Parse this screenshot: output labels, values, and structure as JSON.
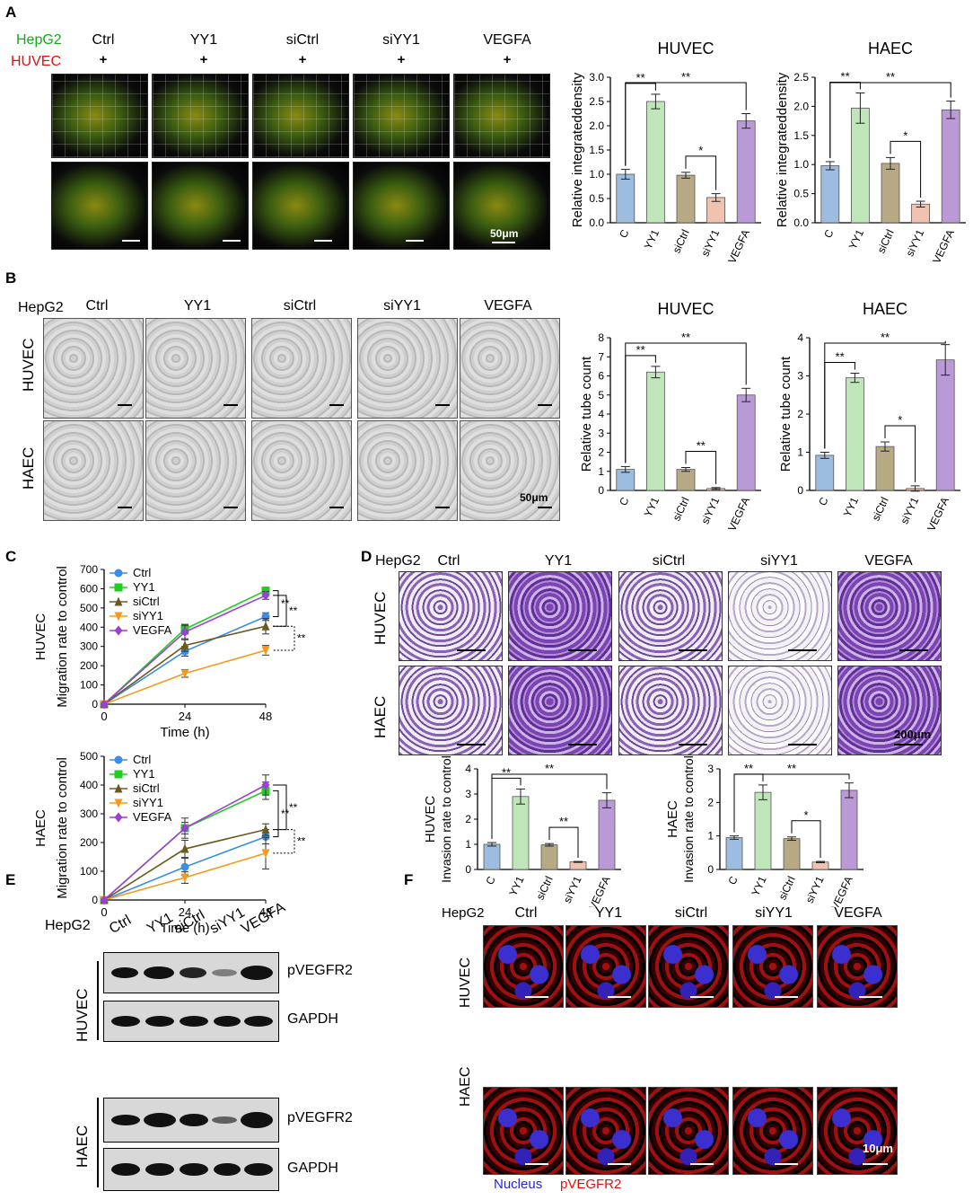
{
  "panels": {
    "A": "A",
    "B": "B",
    "C": "C",
    "D": "D",
    "E": "E",
    "F": "F"
  },
  "panel_a": {
    "row_labels": [
      "HepG2",
      "HUVEC"
    ],
    "row_colors": [
      "#1aa51a",
      "#e01010"
    ],
    "groups": [
      "Ctrl",
      "YY1",
      "siCtrl",
      "siYY1",
      "VEGFA"
    ],
    "plus": "+",
    "scale": "50μm"
  },
  "panel_b": {
    "label": "HepG2",
    "groups": [
      "Ctrl",
      "YY1",
      "siCtrl",
      "siYY1",
      "VEGFA"
    ],
    "rows": [
      "HUVEC",
      "HAEC"
    ],
    "scale": "50μm"
  },
  "panel_d": {
    "label": "HepG2",
    "groups": [
      "Ctrl",
      "YY1",
      "siCtrl",
      "siYY1",
      "VEGFA"
    ],
    "rows": [
      "HUVEC",
      "HAEC"
    ],
    "scale": "200μm"
  },
  "panel_e": {
    "label": "HepG2",
    "groups": [
      "Ctrl",
      "YY1",
      "siCtrl",
      "siYY1",
      "VEGFA"
    ],
    "cell_lines": [
      "HUVEC",
      "HAEC"
    ],
    "bands": [
      "pVEGFR2",
      "GAPDH",
      "pVEGFR2",
      "GAPDH"
    ],
    "band_intensity_huvec_p": [
      0.75,
      0.85,
      0.7,
      0.3,
      0.95
    ],
    "band_intensity_haec_p": [
      0.75,
      0.95,
      0.8,
      0.4,
      1.0
    ]
  },
  "panel_f": {
    "label": "HepG2",
    "groups": [
      "Ctrl",
      "YY1",
      "siCtrl",
      "siYY1",
      "VEGFA"
    ],
    "rows": [
      "HUVEC",
      "HAEC"
    ],
    "scale": "10μm",
    "legend_nucleus": "Nucleus",
    "legend_marker": "pVEGFR2",
    "legend_colors": [
      "#2424e0",
      "#e01010"
    ]
  },
  "chart_data": [
    {
      "id": "A-HUVEC",
      "type": "bar",
      "title": "HUVEC",
      "ylabel": "Relative integrateddensity",
      "categories": [
        "C",
        "YY1",
        "siCtrl",
        "siYY1",
        "VEGFA"
      ],
      "values": [
        1.0,
        2.5,
        0.98,
        0.52,
        2.1
      ],
      "errors": [
        0.1,
        0.15,
        0.06,
        0.08,
        0.15
      ],
      "colors": [
        "#9cbce0",
        "#bfe6b8",
        "#b8a985",
        "#efc3b0",
        "#b99ad6"
      ],
      "ylim": [
        0,
        3.0
      ],
      "yticks": [
        "0.0",
        "0.5",
        "1.0",
        "1.5",
        "2.0",
        "2.5",
        "3.0"
      ],
      "sig": [
        {
          "from": 0,
          "to": 1,
          "text": "**"
        },
        {
          "from": 0,
          "to": 4,
          "text": "**"
        },
        {
          "from": 2,
          "to": 3,
          "text": "*"
        }
      ]
    },
    {
      "id": "A-HAEC",
      "type": "bar",
      "title": "HAEC",
      "ylabel": "Relative integrateddensity",
      "categories": [
        "C",
        "YY1",
        "siCtrl",
        "siYY1",
        "VEGFA"
      ],
      "values": [
        0.98,
        1.97,
        1.02,
        0.32,
        1.94
      ],
      "errors": [
        0.07,
        0.26,
        0.1,
        0.05,
        0.15
      ],
      "colors": [
        "#9cbce0",
        "#bfe6b8",
        "#b8a985",
        "#efc3b0",
        "#b99ad6"
      ],
      "ylim": [
        0,
        2.5
      ],
      "yticks": [
        "0.0",
        "0.5",
        "1.0",
        "1.5",
        "2.0",
        "2.5"
      ],
      "sig": [
        {
          "from": 0,
          "to": 1,
          "text": "**"
        },
        {
          "from": 0,
          "to": 4,
          "text": "**"
        },
        {
          "from": 2,
          "to": 3,
          "text": "*"
        }
      ]
    },
    {
      "id": "B-HUVEC",
      "type": "bar",
      "title": "HUVEC",
      "ylabel": "Relative tube count",
      "categories": [
        "C",
        "YY1",
        "siCtrl",
        "siYY1",
        "VEGFA"
      ],
      "values": [
        1.1,
        6.2,
        1.1,
        0.1,
        5.0
      ],
      "errors": [
        0.15,
        0.3,
        0.1,
        0.05,
        0.35
      ],
      "colors": [
        "#9cbce0",
        "#bfe6b8",
        "#b8a985",
        "#efc3b0",
        "#b99ad6"
      ],
      "ylim": [
        0,
        8
      ],
      "yticks": [
        "0",
        "1",
        "2",
        "3",
        "4",
        "5",
        "6",
        "7",
        "8"
      ],
      "sig": [
        {
          "from": 0,
          "to": 1,
          "text": "**"
        },
        {
          "from": 0,
          "to": 4,
          "text": "**"
        },
        {
          "from": 2,
          "to": 3,
          "text": "**"
        }
      ]
    },
    {
      "id": "B-HAEC",
      "type": "bar",
      "title": "HAEC",
      "ylabel": "Relative tube count",
      "categories": [
        "C",
        "YY1",
        "siCtrl",
        "siYY1",
        "VEGFA"
      ],
      "values": [
        0.92,
        2.95,
        1.15,
        0.05,
        3.42
      ],
      "errors": [
        0.08,
        0.12,
        0.12,
        0.07,
        0.4
      ],
      "colors": [
        "#9cbce0",
        "#bfe6b8",
        "#b8a985",
        "#efc3b0",
        "#b99ad6"
      ],
      "ylim": [
        0,
        4
      ],
      "yticks": [
        "0",
        "1",
        "2",
        "3",
        "4"
      ],
      "sig": [
        {
          "from": 0,
          "to": 1,
          "text": "**"
        },
        {
          "from": 0,
          "to": 4,
          "text": "**"
        },
        {
          "from": 2,
          "to": 3,
          "text": "*"
        }
      ]
    },
    {
      "id": "C-HUVEC",
      "type": "line",
      "rowlabel": "HUVEC",
      "xlabel": "Time (h)",
      "ylabel": "Migration rate to control",
      "x": [
        0,
        24,
        48
      ],
      "xticks": [
        "0",
        "24",
        "48"
      ],
      "ylim": [
        0,
        700
      ],
      "yticks": [
        "0",
        "100",
        "200",
        "300",
        "400",
        "500",
        "600",
        "700"
      ],
      "series": [
        {
          "name": "Ctrl",
          "color": "#3a8ee6",
          "marker": "circle",
          "values": [
            0,
            275,
            455
          ],
          "errors": [
            0,
            25,
            20
          ]
        },
        {
          "name": "YY1",
          "color": "#22cc22",
          "marker": "square",
          "values": [
            0,
            390,
            590
          ],
          "errors": [
            0,
            25,
            15
          ]
        },
        {
          "name": "siCtrl",
          "color": "#6b5a1e",
          "marker": "triangle",
          "values": [
            0,
            305,
            405
          ],
          "errors": [
            0,
            30,
            40
          ]
        },
        {
          "name": "siYY1",
          "color": "#f59a1e",
          "marker": "triangle-down",
          "values": [
            0,
            160,
            280
          ],
          "errors": [
            0,
            20,
            25
          ]
        },
        {
          "name": "VEGFA",
          "color": "#9b3fd6",
          "marker": "diamond",
          "values": [
            0,
            375,
            565
          ],
          "errors": [
            0,
            35,
            20
          ]
        }
      ],
      "sig": [
        "**",
        "**",
        "**"
      ]
    },
    {
      "id": "C-HAEC",
      "type": "line",
      "rowlabel": "HAEC",
      "xlabel": "Time (h)",
      "ylabel": "Migration rate to control",
      "x": [
        0,
        24,
        48
      ],
      "xticks": [
        "0",
        "24",
        "48"
      ],
      "ylim": [
        0,
        500
      ],
      "yticks": [
        "0",
        "100",
        "200",
        "300",
        "400",
        "500"
      ],
      "series": [
        {
          "name": "Ctrl",
          "color": "#3a8ee6",
          "marker": "circle",
          "values": [
            0,
            115,
            220
          ],
          "errors": [
            0,
            30,
            25
          ]
        },
        {
          "name": "YY1",
          "color": "#22cc22",
          "marker": "square",
          "values": [
            0,
            250,
            380
          ],
          "errors": [
            0,
            20,
            30
          ]
        },
        {
          "name": "siCtrl",
          "color": "#6b5a1e",
          "marker": "triangle",
          "values": [
            0,
            178,
            245
          ],
          "errors": [
            0,
            30,
            20
          ]
        },
        {
          "name": "siYY1",
          "color": "#f59a1e",
          "marker": "triangle-down",
          "values": [
            0,
            78,
            163
          ],
          "errors": [
            0,
            20,
            55
          ]
        },
        {
          "name": "VEGFA",
          "color": "#9b3fd6",
          "marker": "diamond",
          "values": [
            0,
            250,
            400
          ],
          "errors": [
            0,
            35,
            35
          ]
        }
      ],
      "sig": [
        "**",
        "**",
        "**"
      ]
    },
    {
      "id": "D-HUVEC",
      "type": "bar",
      "ylabel": "Invasion rate to control",
      "rowlabel": "HUVEC",
      "categories": [
        "C",
        "YY1",
        "siCtrl",
        "siYY1",
        "VEGFA"
      ],
      "values": [
        1.0,
        2.9,
        0.98,
        0.3,
        2.75
      ],
      "errors": [
        0.07,
        0.3,
        0.05,
        0.02,
        0.3
      ],
      "colors": [
        "#9cbce0",
        "#bfe6b8",
        "#b8a985",
        "#efc3b0",
        "#b99ad6"
      ],
      "ylim": [
        0,
        4
      ],
      "yticks": [
        "0",
        "1",
        "2",
        "3",
        "4"
      ],
      "sig": [
        {
          "from": 0,
          "to": 1,
          "text": "**"
        },
        {
          "from": 0,
          "to": 4,
          "text": "**"
        },
        {
          "from": 2,
          "to": 3,
          "text": "**"
        }
      ]
    },
    {
      "id": "D-HAEC",
      "type": "bar",
      "ylabel": "Invasion rate to control",
      "rowlabel": "HAEC",
      "categories": [
        "C",
        "YY1",
        "siCtrl",
        "siYY1",
        "VEGFA"
      ],
      "values": [
        0.95,
        2.3,
        0.92,
        0.22,
        2.36
      ],
      "errors": [
        0.05,
        0.22,
        0.05,
        0.02,
        0.22
      ],
      "colors": [
        "#9cbce0",
        "#bfe6b8",
        "#b8a985",
        "#efc3b0",
        "#b99ad6"
      ],
      "ylim": [
        0,
        3
      ],
      "yticks": [
        "0",
        "1",
        "2",
        "3"
      ],
      "sig": [
        {
          "from": 0,
          "to": 1,
          "text": "**"
        },
        {
          "from": 0,
          "to": 4,
          "text": "**"
        },
        {
          "from": 2,
          "to": 3,
          "text": "*"
        }
      ]
    }
  ]
}
